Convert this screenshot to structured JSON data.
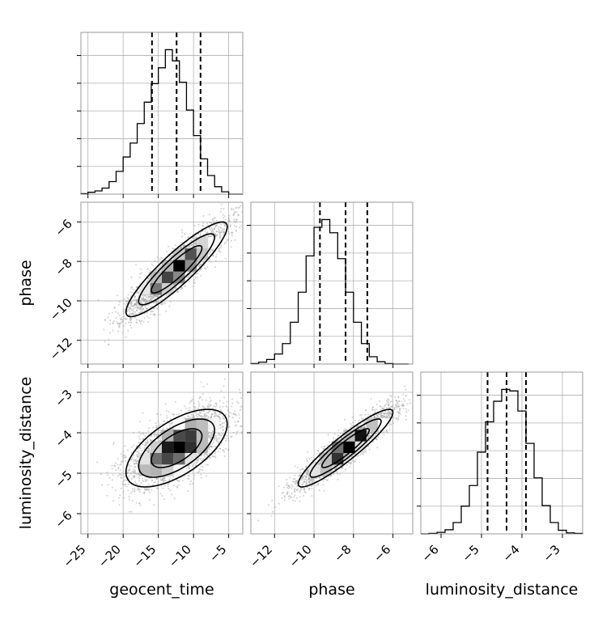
{
  "chart_data": {
    "type": "corner",
    "parameters": [
      "geocent_time",
      "phase",
      "luminosity_distance"
    ],
    "axis_labels": {
      "geocent_time": "geocent_time",
      "phase": "phase",
      "luminosity_distance": "luminosity_distance"
    },
    "ranges": {
      "geocent_time": [
        -26,
        -3
      ],
      "phase": [
        -13.2,
        -5
      ],
      "luminosity_distance": [
        -6.5,
        -2.5
      ]
    },
    "ticks": {
      "geocent_time": [
        -25,
        -20,
        -15,
        -10,
        -5
      ],
      "phase": [
        -12,
        -10,
        -8,
        -6
      ],
      "luminosity_distance": [
        -6,
        -5,
        -4,
        -3
      ]
    },
    "tick_labels": {
      "geocent_time": [
        "−25",
        "−20",
        "−15",
        "−10",
        "−5"
      ],
      "phase": [
        "−12",
        "−10",
        "−8",
        "−6"
      ],
      "luminosity_distance": [
        "−6",
        "−5",
        "−4",
        "−3"
      ]
    },
    "marginal_histograms": {
      "geocent_time": {
        "bin_edges": [
          -26,
          -25,
          -24,
          -23,
          -22,
          -21,
          -20,
          -19,
          -18,
          -17,
          -16,
          -15,
          -14,
          -13,
          -12,
          -11,
          -10,
          -9,
          -8,
          -7,
          -6,
          -5,
          -4,
          -3
        ],
        "counts": [
          1,
          4,
          7,
          13,
          27,
          49,
          80,
          110,
          152,
          198,
          238,
          272,
          311,
          287,
          241,
          181,
          126,
          76,
          40,
          16,
          5,
          0,
          0
        ]
      },
      "phase": {
        "bin_edges": [
          -13.2,
          -12.8,
          -12.4,
          -12.0,
          -11.6,
          -11.2,
          -10.8,
          -10.4,
          -10.0,
          -9.6,
          -9.2,
          -8.8,
          -8.4,
          -8.0,
          -7.6,
          -7.2,
          -6.8,
          -6.4,
          -6.0,
          -5.6,
          -5.2
        ],
        "counts": [
          1,
          4,
          10,
          22,
          45,
          92,
          158,
          238,
          301,
          318,
          289,
          232,
          158,
          92,
          45,
          16,
          5,
          1,
          0,
          0
        ]
      },
      "luminosity_distance": {
        "bin_edges": [
          -6.5,
          -6.3,
          -6.1,
          -5.9,
          -5.7,
          -5.5,
          -5.3,
          -5.1,
          -4.9,
          -4.7,
          -4.5,
          -4.3,
          -4.1,
          -3.9,
          -3.7,
          -3.5,
          -3.3,
          -3.1,
          -2.9,
          -2.7,
          -2.5
        ],
        "counts": [
          0,
          1,
          3,
          8,
          22,
          54,
          94,
          159,
          218,
          258,
          281,
          278,
          239,
          176,
          109,
          55,
          22,
          7,
          2,
          1
        ]
      }
    },
    "quantiles": {
      "geocent_time": [
        -15.9,
        -12.4,
        -9.0
      ],
      "phase": [
        -9.7,
        -8.4,
        -7.3
      ],
      "luminosity_distance": [
        -4.85,
        -4.38,
        -3.9
      ]
    },
    "joint_2d": {
      "phase_vs_geocent_time": {
        "mean": [
          -12.4,
          -8.4
        ],
        "std": [
          3.6,
          1.2
        ],
        "correlation": 0.9
      },
      "luminosity_distance_vs_geocent_time": {
        "mean": [
          -12.4,
          -4.38
        ],
        "std": [
          3.6,
          0.48
        ],
        "correlation": 0.62
      },
      "luminosity_distance_vs_phase": {
        "mean": [
          -8.4,
          -4.38
        ],
        "std": [
          1.2,
          0.48
        ],
        "correlation": 0.92
      }
    },
    "contour_levels_sigma": [
      0.5,
      1.0,
      1.5,
      2.0
    ],
    "grid": true,
    "colors": {
      "line": "#000000",
      "frame": "#808080",
      "grid": "#b0b0b0",
      "samples": "#9a9a9a"
    }
  }
}
